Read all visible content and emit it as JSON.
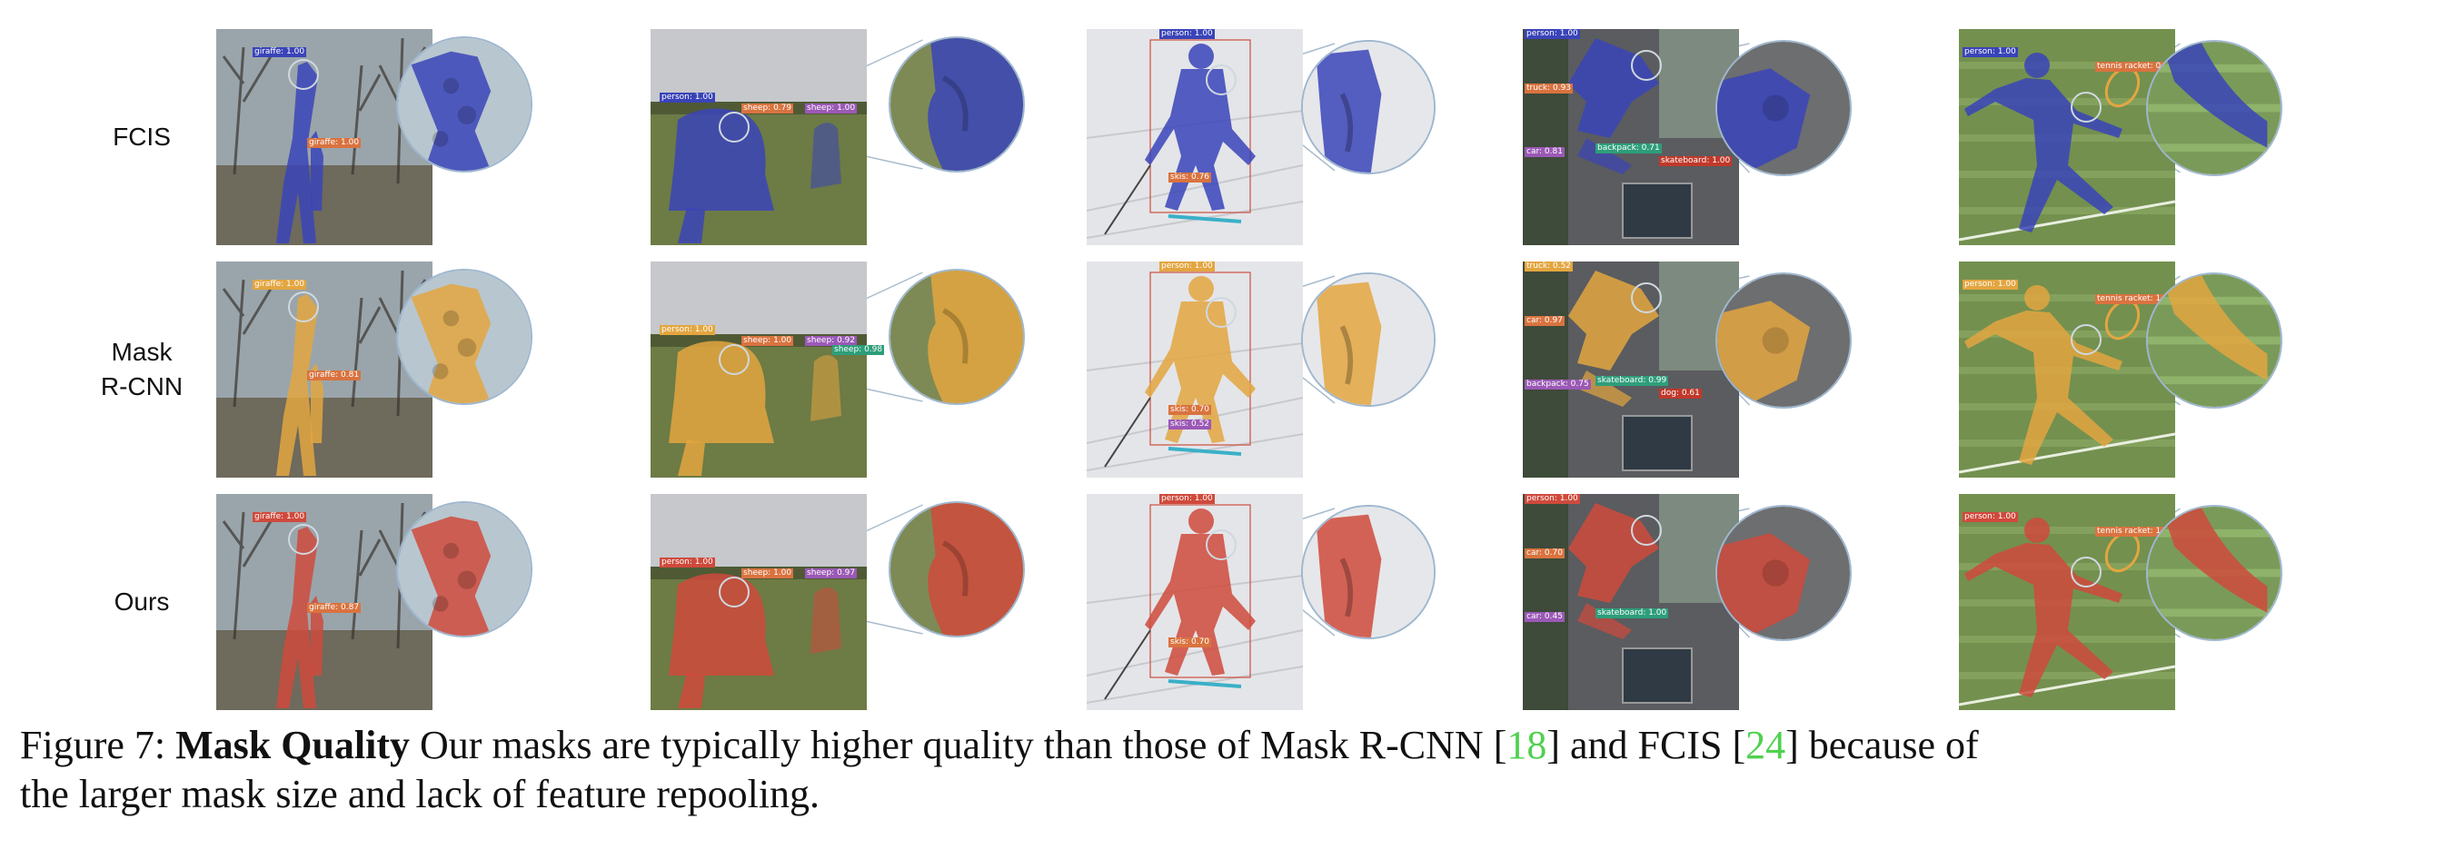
{
  "rows": [
    {
      "label_lines": [
        "FCIS"
      ],
      "mask_color": "#3a44b8"
    },
    {
      "label_lines": [
        "Mask",
        "R-CNN"
      ],
      "mask_color": "#e3a640"
    },
    {
      "label_lines": [
        "Ours"
      ],
      "mask_color": "#cf4a3c"
    }
  ],
  "scenes": [
    {
      "name": "giraffes",
      "bg": "#8d8a82"
    },
    {
      "name": "sheep",
      "bg": "#6f7a4d"
    },
    {
      "name": "skier",
      "bg": "#dedfe3"
    },
    {
      "name": "skateboarder",
      "bg": "#5c5d5e"
    },
    {
      "name": "tennis",
      "bg": "#6f8a53"
    }
  ],
  "labels": {
    "r0": {
      "c0": [
        "giraffe: 1.00",
        "giraffe: 1.00"
      ],
      "c1": [
        "person: 1.00",
        "sheep: 0.79",
        "sheep: 1.00"
      ],
      "c2": [
        "person: 1.00",
        "skis: 0.76"
      ],
      "c3": [
        "person: 1.00",
        "truck: 0.93",
        "car: 0.81",
        "backpack: 0.71",
        "skateboard: 1.00"
      ],
      "c4": [
        "person: 1.00",
        "tennis racket: 0.99"
      ]
    },
    "r1": {
      "c0": [
        "giraffe: 1.00",
        "giraffe: 0.81"
      ],
      "c1": [
        "person: 1.00",
        "sheep: 1.00",
        "sheep: 0.92",
        "sheep: 0.98"
      ],
      "c2": [
        "person: 1.00",
        "skis: 0.70",
        "skis: 0.52"
      ],
      "c3": [
        "truck: 0.52",
        "car: 0.97",
        "backpack: 0.75",
        "skateboard: 0.99",
        "dog: 0.61"
      ],
      "c4": [
        "person: 1.00",
        "tennis racket: 1.00"
      ]
    },
    "r2": {
      "c0": [
        "giraffe: 1.00",
        "giraffe: 0.87"
      ],
      "c1": [
        "person: 1.00",
        "sheep: 1.00",
        "sheep: 0.97"
      ],
      "c2": [
        "person: 1.00",
        "skis: 0.70"
      ],
      "c3": [
        "person: 1.00",
        "car: 0.70",
        "car: 0.45",
        "skateboard: 1.00"
      ],
      "c4": [
        "person: 1.00",
        "tennis racket: 1.00"
      ]
    }
  },
  "caption": {
    "prefix": "Figure 7: ",
    "bold": "Mask Quality",
    "text1": "   Our masks are typically higher quality than those of Mask R-CNN [",
    "cite1": "18",
    "text2": "] and FCIS [",
    "cite2": "24",
    "text3": "] because of",
    "line2": "the larger mask size and lack of feature repooling."
  }
}
